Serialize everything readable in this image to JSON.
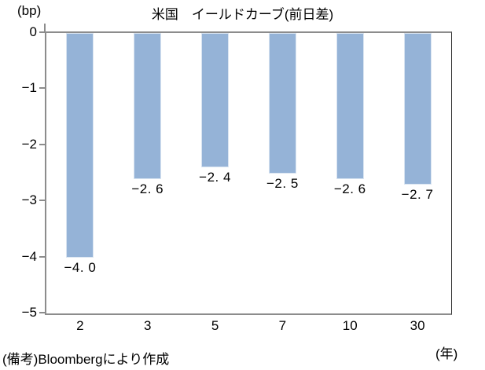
{
  "chart_data": {
    "type": "bar",
    "title": "米国　イールドカーブ(前日差)",
    "y_unit_label": "(bp)",
    "x_unit_label": "(年)",
    "categories": [
      "2",
      "3",
      "5",
      "7",
      "10",
      "30"
    ],
    "values": [
      -4.0,
      -2.6,
      -2.4,
      -2.5,
      -2.6,
      -2.7
    ],
    "data_labels": [
      "−4. 0",
      "−2. 6",
      "−2. 4",
      "−2. 5",
      "−2. 6",
      "−2. 7"
    ],
    "y_ticks": [
      0,
      -1,
      -2,
      -3,
      -4,
      -5
    ],
    "y_tick_labels": [
      "0",
      "−1",
      "−2",
      "−3",
      "−4",
      "−5"
    ],
    "ylim": [
      -5,
      0
    ],
    "grid": false,
    "legend": false,
    "bar_color": "#95B3D7",
    "bar_edge_color": "#D9E4F1",
    "axis_color": "#8C8C8C",
    "plot_right_border_color": "#333333"
  },
  "footer": {
    "note": "(備考)Bloombergにより作成"
  }
}
